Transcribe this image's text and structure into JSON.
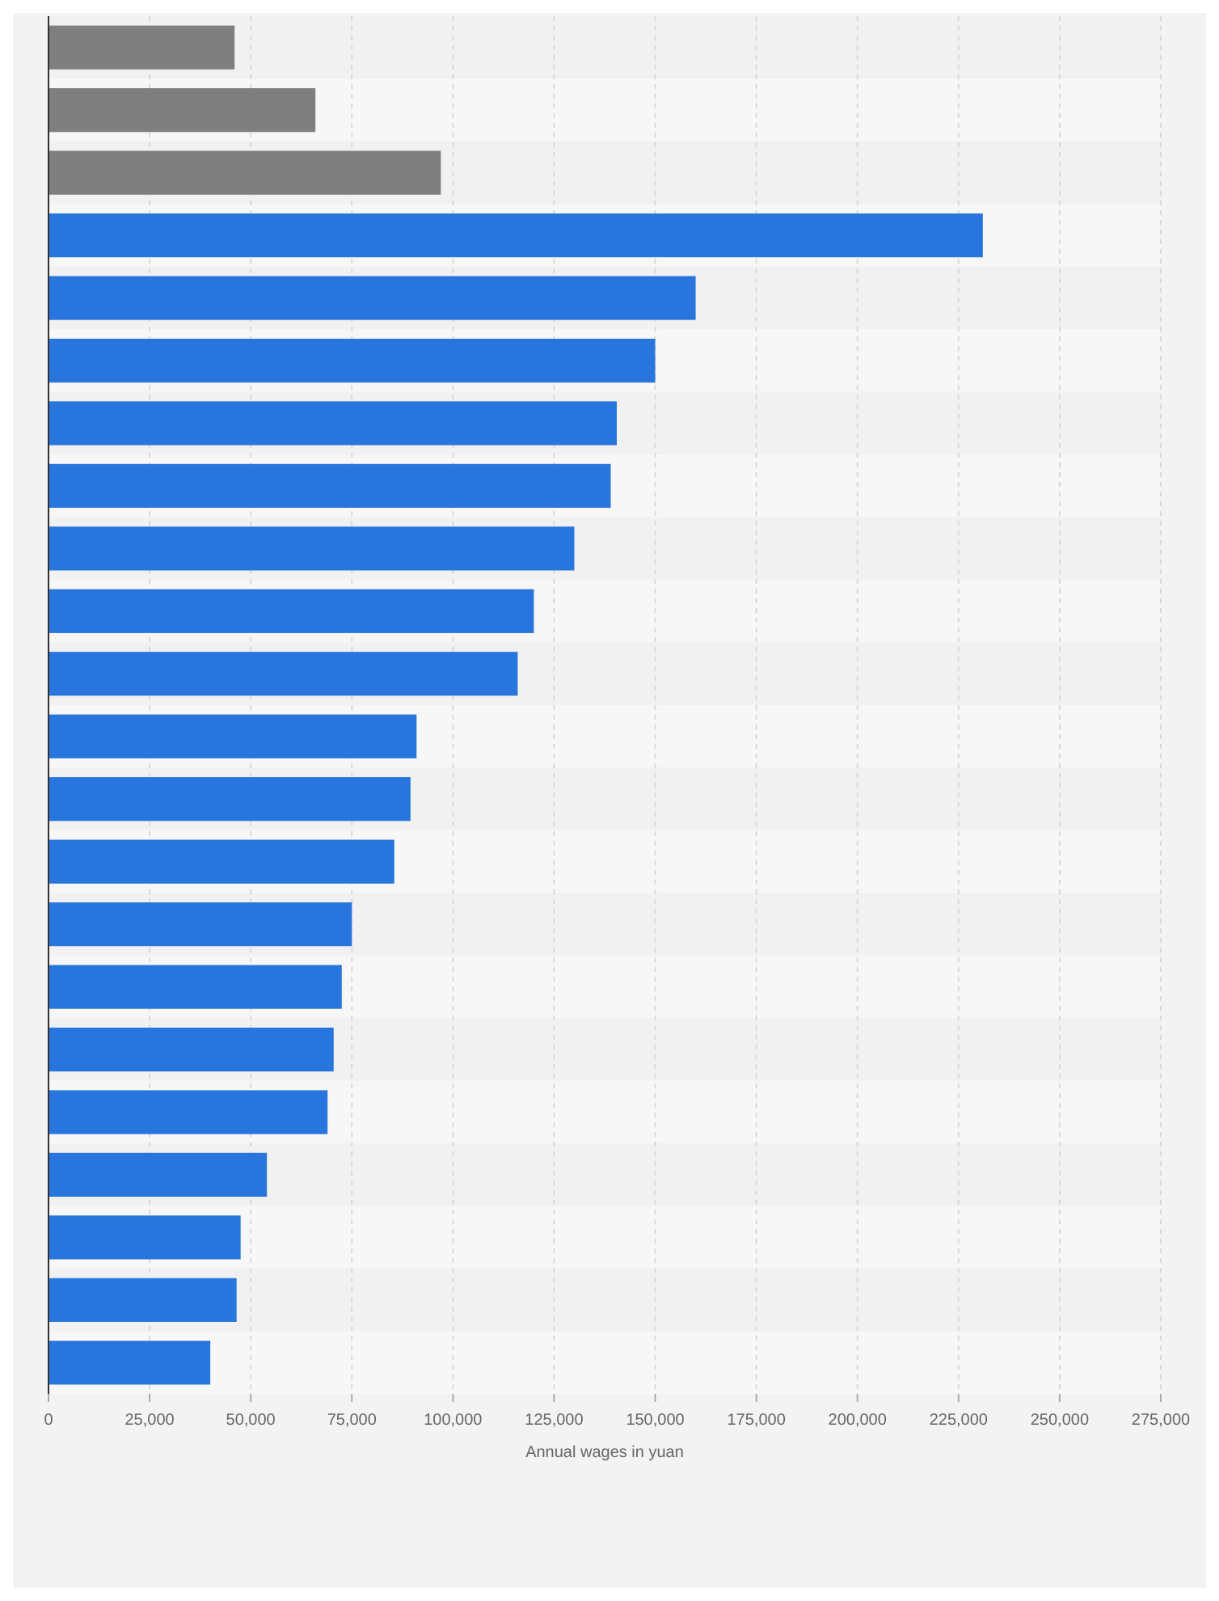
{
  "chart_data": {
    "type": "bar",
    "orientation": "horizontal",
    "xlabel": "Annual wages in yuan",
    "categories": [
      null,
      null,
      null,
      null,
      null,
      null,
      null,
      null,
      null,
      null,
      null,
      null,
      null,
      null,
      null,
      null,
      null,
      null,
      null,
      null,
      null,
      null
    ],
    "values": [
      46000,
      66000,
      97000,
      231000,
      160000,
      150000,
      140500,
      139000,
      130000,
      120000,
      116000,
      91000,
      89500,
      85500,
      75000,
      72500,
      70500,
      69000,
      54000,
      47500,
      46500,
      40000
    ],
    "colors": [
      "#7f7f7f",
      "#7f7f7f",
      "#7f7f7f",
      "#2876dd",
      "#2876dd",
      "#2876dd",
      "#2876dd",
      "#2876dd",
      "#2876dd",
      "#2876dd",
      "#2876dd",
      "#2876dd",
      "#2876dd",
      "#2876dd",
      "#2876dd",
      "#2876dd",
      "#2876dd",
      "#2876dd",
      "#2876dd",
      "#2876dd",
      "#2876dd",
      "#2876dd"
    ],
    "xlim": [
      0,
      275000
    ],
    "xticks": [
      {
        "value": 0,
        "label": "0"
      },
      {
        "value": 25000,
        "label": "25,000"
      },
      {
        "value": 50000,
        "label": "50,000"
      },
      {
        "value": 75000,
        "label": "75,000"
      },
      {
        "value": 100000,
        "label": "100,000"
      },
      {
        "value": 125000,
        "label": "125,000"
      },
      {
        "value": 150000,
        "label": "150,000"
      },
      {
        "value": 175000,
        "label": "175,000"
      },
      {
        "value": 200000,
        "label": "200,000"
      },
      {
        "value": 225000,
        "label": "225,000"
      },
      {
        "value": 250000,
        "label": "250,000"
      },
      {
        "value": 275000,
        "label": "275,000"
      }
    ],
    "grid": "x"
  }
}
